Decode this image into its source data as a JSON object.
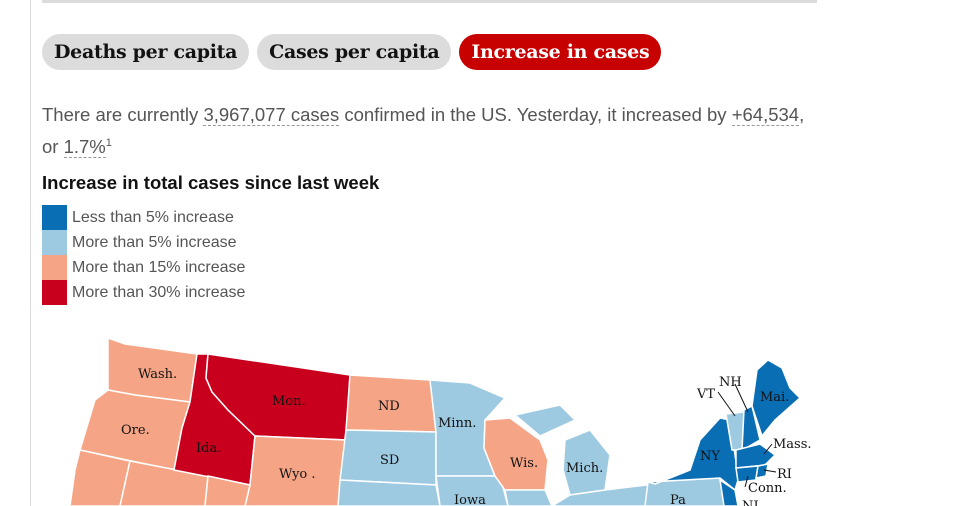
{
  "tabs": [
    {
      "label": "Deaths per capita",
      "active": false
    },
    {
      "label": "Cases per capita",
      "active": false
    },
    {
      "label": "Increase in cases",
      "active": true
    }
  ],
  "summary": {
    "prefix": "There are currently ",
    "cases": "3,967,077 cases",
    "middle": " confirmed in the US. Yesterday, it increased by ",
    "increase": "+64,534",
    "comma": ",",
    "or": "or ",
    "percent": "1.7%",
    "footnote": "1"
  },
  "legend": {
    "title": "Increase in total cases since last week",
    "items": [
      {
        "label": "Less than 5% increase",
        "color": "#0a6eb4"
      },
      {
        "label": "More than 5% increase",
        "color": "#9ecae1"
      },
      {
        "label": "More than 15% increase",
        "color": "#f5a585"
      },
      {
        "label": "More than 30% increase",
        "color": "#c8001e"
      }
    ]
  },
  "map": {
    "labels": {
      "wash": "Wash.",
      "ore": "Ore.",
      "ida": "Ida.",
      "mon": "Mon.",
      "wyo": "Wyo .",
      "nd": "ND",
      "sd": "SD",
      "minn": "Minn.",
      "wis": "Wis.",
      "iowa": "Iowa",
      "mich": "Mich.",
      "pa": "Pa",
      "ny": "NY",
      "vt": "VT",
      "nh": "NH",
      "mai": "Mai.",
      "mass": "Mass.",
      "ri": "RI",
      "conn": "Conn.",
      "nj": "NJ"
    }
  }
}
